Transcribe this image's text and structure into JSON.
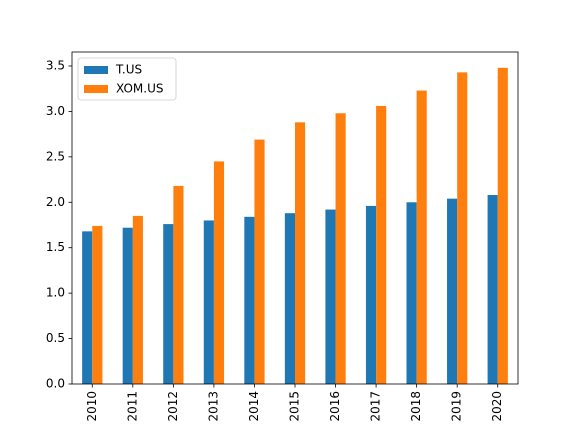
{
  "chart_data": {
    "type": "bar",
    "categories": [
      "2010",
      "2011",
      "2012",
      "2013",
      "2014",
      "2015",
      "2016",
      "2017",
      "2018",
      "2019",
      "2020"
    ],
    "series": [
      {
        "name": "T.US",
        "color": "#1f77b4",
        "values": [
          1.68,
          1.72,
          1.76,
          1.8,
          1.84,
          1.88,
          1.92,
          1.96,
          2.0,
          2.04,
          2.08
        ]
      },
      {
        "name": "XOM.US",
        "color": "#ff7f0e",
        "values": [
          1.74,
          1.85,
          2.18,
          2.45,
          2.69,
          2.88,
          2.98,
          3.06,
          3.23,
          3.43,
          3.48
        ]
      }
    ],
    "ylim": [
      0,
      3.654
    ],
    "yticks": [
      {
        "value": 0,
        "label": "0.0"
      },
      0.5,
      {
        "value": 1,
        "label": "1.0"
      },
      1.5,
      {
        "value": 2,
        "label": "2.0"
      },
      2.5,
      {
        "value": 3,
        "label": "3.0"
      },
      3.5
    ],
    "legend": "upper left"
  }
}
